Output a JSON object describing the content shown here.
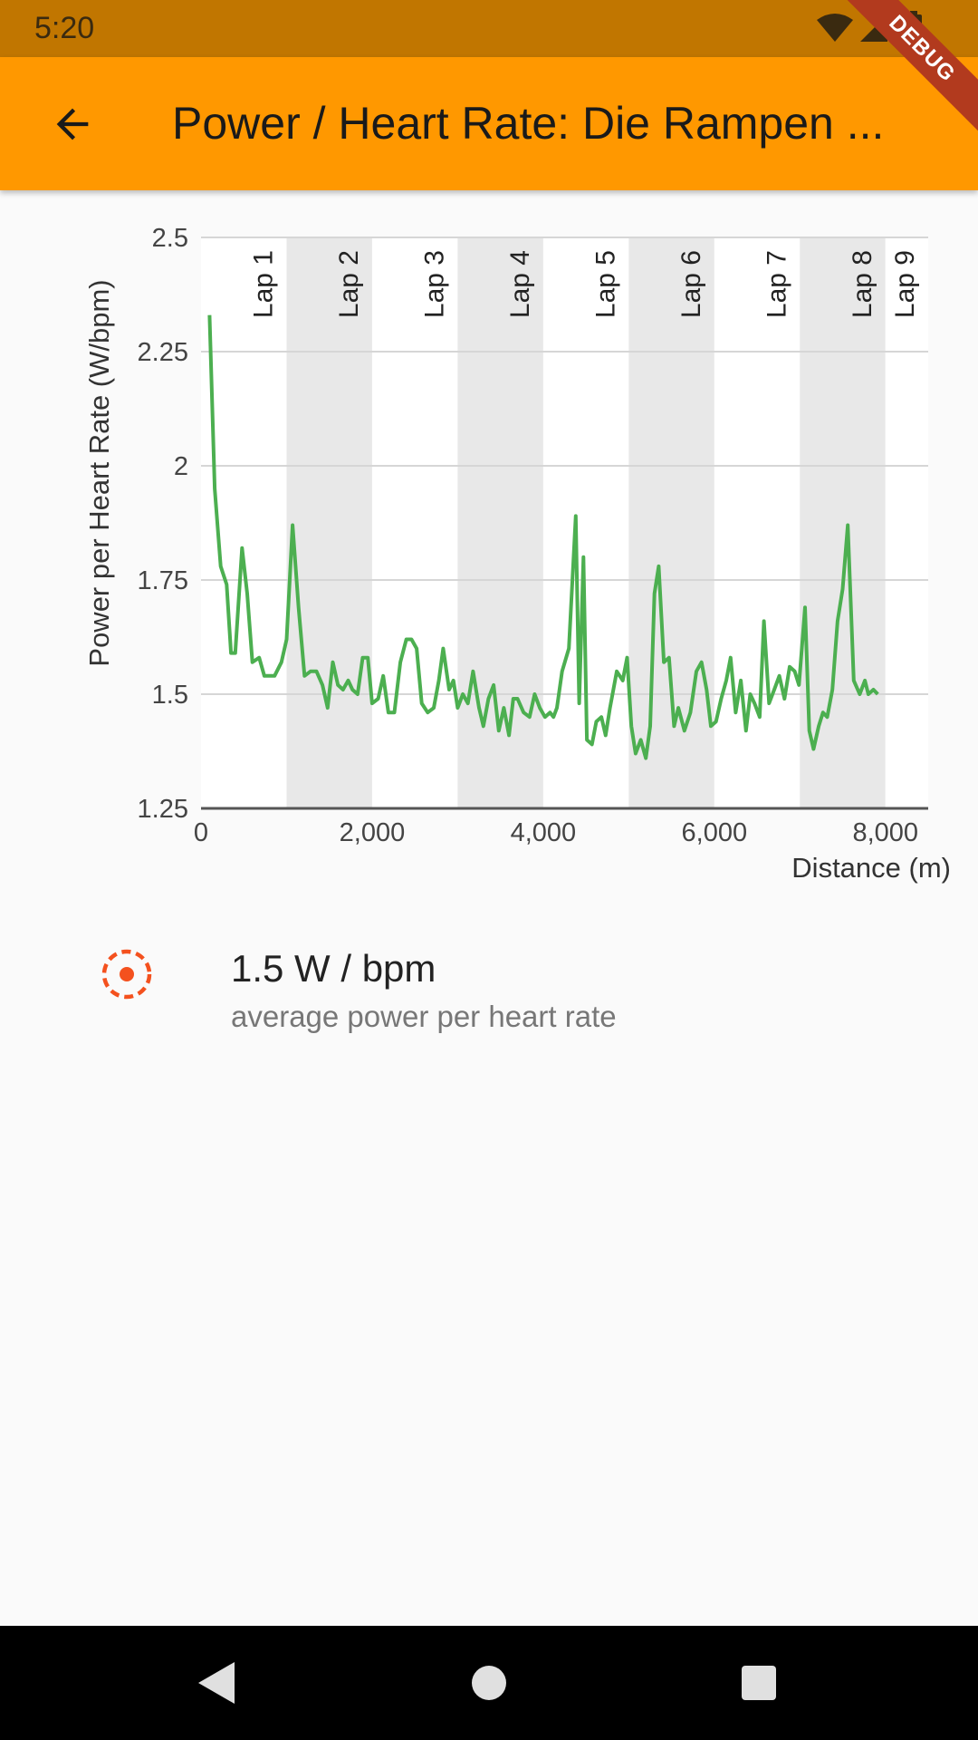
{
  "status_bar": {
    "time": "5:20"
  },
  "app_bar": {
    "title": "Power / Heart Rate: Die Rampen ...",
    "debug_banner": "DEBUG"
  },
  "colors": {
    "accent": "#ff9800",
    "line": "#4caf50",
    "stat_icon": "#f4511e"
  },
  "chart_data": {
    "type": "line",
    "xlabel": "Distance (m)",
    "ylabel": "Power per Heart Rate (W/bpm)",
    "xlim": [
      0,
      8500
    ],
    "ylim": [
      1.25,
      2.5
    ],
    "x_ticks": [
      0,
      2000,
      4000,
      6000,
      8000
    ],
    "x_tick_labels": [
      "0",
      "2,000",
      "4,000",
      "6,000",
      "8,000"
    ],
    "y_ticks": [
      1.25,
      1.5,
      1.75,
      2,
      2.25,
      2.5
    ],
    "y_tick_labels": [
      "1.25",
      "1.5",
      "1.75",
      "2",
      "2.25",
      "2.5"
    ],
    "grid": true,
    "laps": [
      {
        "label": "Lap 1",
        "start": 0,
        "end": 1000,
        "shaded": false
      },
      {
        "label": "Lap 2",
        "start": 1000,
        "end": 2000,
        "shaded": true
      },
      {
        "label": "Lap 3",
        "start": 2000,
        "end": 3000,
        "shaded": false
      },
      {
        "label": "Lap 4",
        "start": 3000,
        "end": 4000,
        "shaded": true
      },
      {
        "label": "Lap 5",
        "start": 4000,
        "end": 5000,
        "shaded": false
      },
      {
        "label": "Lap 6",
        "start": 5000,
        "end": 6000,
        "shaded": true
      },
      {
        "label": "Lap 7",
        "start": 6000,
        "end": 7000,
        "shaded": false
      },
      {
        "label": "Lap 8",
        "start": 7000,
        "end": 8000,
        "shaded": true
      },
      {
        "label": "Lap 9",
        "start": 8000,
        "end": 8500,
        "shaded": false
      }
    ],
    "series": [
      {
        "x": [
          100,
          160,
          230,
          300,
          350,
          400,
          480,
          540,
          600,
          680,
          740,
          800,
          860,
          940,
          1000,
          1070,
          1140,
          1210,
          1280,
          1350,
          1420,
          1480,
          1540,
          1600,
          1660,
          1720,
          1770,
          1830,
          1890,
          1950,
          2000,
          2070,
          2130,
          2190,
          2260,
          2330,
          2400,
          2460,
          2520,
          2580,
          2650,
          2720,
          2780,
          2830,
          2900,
          2950,
          3000,
          3060,
          3120,
          3180,
          3250,
          3300,
          3360,
          3420,
          3480,
          3540,
          3600,
          3650,
          3700,
          3770,
          3840,
          3900,
          3960,
          4020,
          4080,
          4120,
          4160,
          4220,
          4300,
          4380,
          4420,
          4470,
          4510,
          4570,
          4620,
          4680,
          4730,
          4780,
          4860,
          4930,
          4980,
          5030,
          5080,
          5140,
          5200,
          5250,
          5300,
          5350,
          5410,
          5470,
          5530,
          5580,
          5650,
          5720,
          5790,
          5850,
          5910,
          5960,
          6020,
          6080,
          6140,
          6190,
          6250,
          6310,
          6370,
          6420,
          6470,
          6530,
          6580,
          6640,
          6700,
          6760,
          6820,
          6880,
          6940,
          6990,
          7060,
          7110,
          7160,
          7220,
          7270,
          7320,
          7380,
          7440,
          7500,
          7560,
          7630,
          7700,
          7760,
          7800,
          7860,
          7910
        ],
        "y": [
          2.33,
          1.95,
          1.78,
          1.74,
          1.59,
          1.59,
          1.82,
          1.72,
          1.57,
          1.58,
          1.54,
          1.54,
          1.54,
          1.57,
          1.62,
          1.87,
          1.69,
          1.54,
          1.55,
          1.55,
          1.52,
          1.47,
          1.57,
          1.52,
          1.51,
          1.53,
          1.51,
          1.5,
          1.58,
          1.58,
          1.48,
          1.49,
          1.54,
          1.46,
          1.46,
          1.57,
          1.62,
          1.62,
          1.6,
          1.48,
          1.46,
          1.47,
          1.53,
          1.6,
          1.51,
          1.53,
          1.47,
          1.5,
          1.48,
          1.55,
          1.47,
          1.43,
          1.49,
          1.52,
          1.42,
          1.47,
          1.41,
          1.49,
          1.49,
          1.46,
          1.45,
          1.5,
          1.47,
          1.45,
          1.46,
          1.45,
          1.47,
          1.55,
          1.6,
          1.89,
          1.48,
          1.8,
          1.4,
          1.39,
          1.44,
          1.45,
          1.41,
          1.47,
          1.55,
          1.53,
          1.58,
          1.43,
          1.37,
          1.4,
          1.36,
          1.43,
          1.72,
          1.78,
          1.57,
          1.58,
          1.43,
          1.47,
          1.42,
          1.46,
          1.55,
          1.57,
          1.51,
          1.43,
          1.44,
          1.49,
          1.53,
          1.58,
          1.46,
          1.53,
          1.42,
          1.5,
          1.48,
          1.45,
          1.66,
          1.48,
          1.51,
          1.54,
          1.49,
          1.56,
          1.55,
          1.52,
          1.69,
          1.42,
          1.38,
          1.43,
          1.46,
          1.45,
          1.51,
          1.66,
          1.73,
          1.87,
          1.53,
          1.5,
          1.53,
          1.5,
          1.51,
          1.5
        ]
      }
    ]
  },
  "summary": {
    "icon": "target-icon",
    "value": "1.5 W / bpm",
    "label": "average power per heart rate"
  },
  "nav_bar": {
    "back": "back-triangle-icon",
    "home": "home-circle-icon",
    "recents": "recents-square-icon"
  }
}
